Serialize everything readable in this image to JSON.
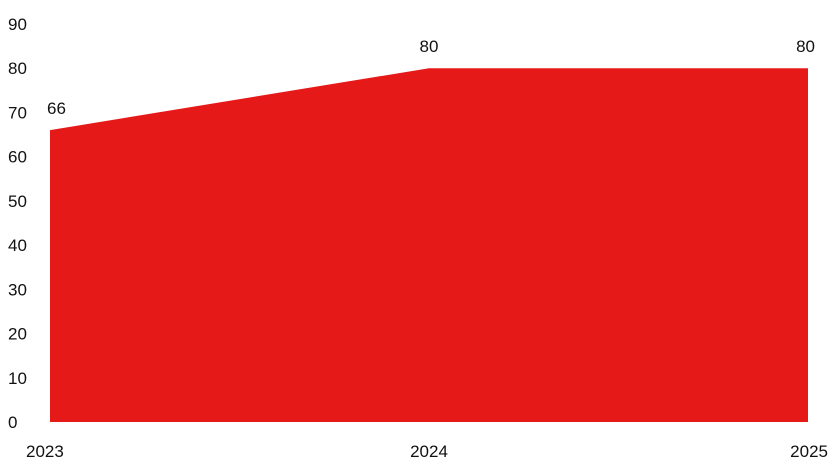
{
  "chart_data": {
    "type": "area",
    "title": "",
    "xlabel": "",
    "ylabel": "",
    "categories": [
      "2023",
      "2024",
      "2025"
    ],
    "values": [
      66,
      80,
      80
    ],
    "data_labels": [
      "66",
      "80",
      "80"
    ],
    "ylim": [
      0,
      90
    ],
    "yticks": [
      "0",
      "10",
      "20",
      "30",
      "40",
      "50",
      "60",
      "70",
      "80",
      "90"
    ],
    "grid": false,
    "legend": "none",
    "fill_color": "#e61919",
    "text_color": "#111111"
  }
}
